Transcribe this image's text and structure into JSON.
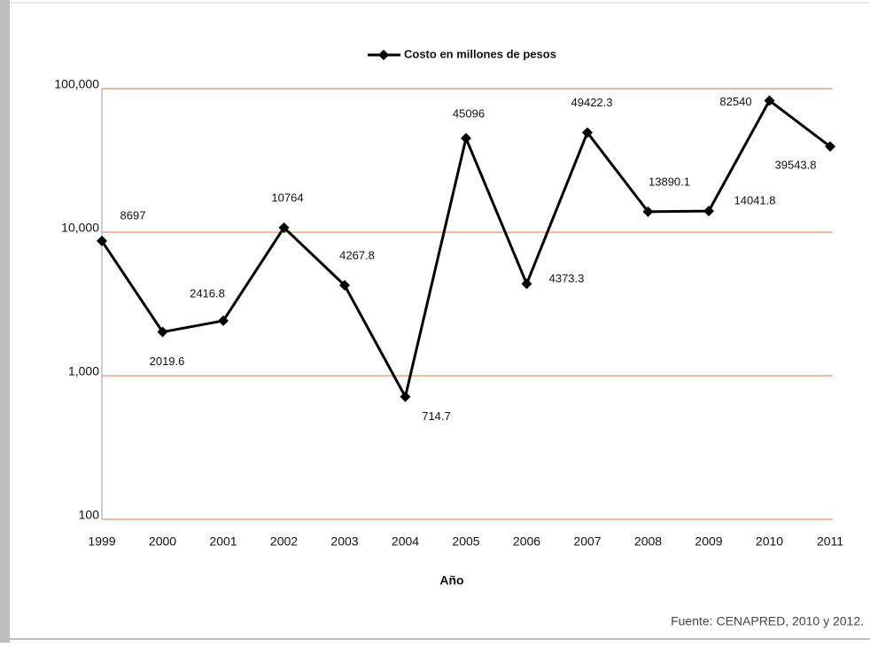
{
  "chart_data": {
    "type": "line",
    "categories": [
      "1999",
      "2000",
      "2001",
      "2002",
      "2003",
      "2004",
      "2005",
      "2006",
      "2007",
      "2008",
      "2009",
      "2010",
      "2011"
    ],
    "series": [
      {
        "name": "Costo en millones de pesos",
        "color": "#000000",
        "values": [
          8697,
          2019.6,
          2416.8,
          10764,
          4267.8,
          714.7,
          45096,
          4373.3,
          49422.3,
          13890.1,
          14041.8,
          82540,
          39543.8
        ]
      }
    ],
    "xlabel": "Año",
    "yscale": "log",
    "ylim": [
      100,
      100000
    ],
    "yticks": [
      100,
      {
        "value": 1000,
        "label": "1,000"
      },
      {
        "value": 10000,
        "label": "10,000"
      },
      {
        "value": 100000,
        "label": "100,000"
      }
    ],
    "grid": true,
    "grid_color": "#e8733a",
    "legend": "top",
    "source": "Fuente: CENAPRED, 2010 y 2012."
  }
}
